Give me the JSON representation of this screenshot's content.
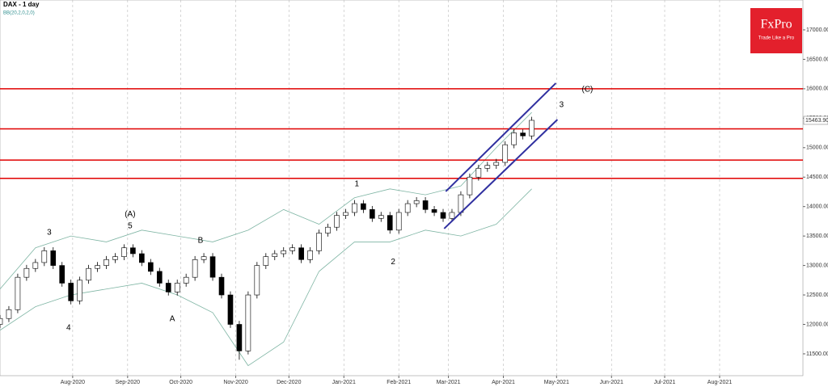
{
  "chart_data": {
    "type": "candlestick",
    "title": "DAX  - 1 day",
    "subtitle": "BB(20,2,0,2,0)",
    "logo": {
      "brand": "FxPro",
      "tagline": "Trade Like a Pro"
    },
    "x": [
      0,
      5,
      10,
      15,
      20,
      25,
      30,
      35,
      40,
      45,
      50,
      55,
      60,
      65,
      70,
      75,
      80,
      85,
      90,
      95,
      100,
      105,
      110,
      115,
      120,
      125,
      130,
      135,
      140,
      145,
      150,
      155,
      160,
      165,
      170,
      175,
      180,
      185,
      190,
      195,
      200,
      205,
      210,
      215,
      220,
      225,
      230,
      235,
      240,
      245,
      250,
      255,
      260,
      265,
      270,
      275,
      280,
      285,
      290,
      295,
      300
    ],
    "open": [
      12000,
      12100,
      12250,
      12800,
      12950,
      13050,
      13250,
      13000,
      12700,
      12400,
      12750,
      12950,
      13000,
      13100,
      13150,
      13300,
      13200,
      13050,
      12900,
      12700,
      12550,
      12700,
      12800,
      13100,
      13150,
      12800,
      12500,
      12000,
      11550,
      12500,
      13000,
      13150,
      13200,
      13250,
      13300,
      13100,
      13250,
      13550,
      13650,
      13850,
      13900,
      14050,
      13950,
      13800,
      13850,
      13600,
      13900,
      14050,
      14100,
      13950,
      13900,
      13800,
      13900,
      14200,
      14500,
      14650,
      14700,
      14750,
      15050,
      15250,
      15200
    ],
    "high": [
      12160,
      12310,
      12860,
      13010,
      13110,
      13310,
      13310,
      13060,
      12760,
      12810,
      13010,
      13060,
      13160,
      13210,
      13360,
      13360,
      13260,
      13110,
      12960,
      12760,
      12760,
      12860,
      13160,
      13210,
      13210,
      12860,
      12560,
      12060,
      12560,
      13060,
      13210,
      13260,
      13310,
      13360,
      13360,
      13310,
      13610,
      13710,
      13910,
      13960,
      14110,
      14110,
      14010,
      13910,
      13910,
      13960,
      14110,
      14160,
      14160,
      14010,
      13960,
      13960,
      14260,
      14560,
      14710,
      14760,
      14810,
      15110,
      15310,
      15310,
      15524
    ],
    "low": [
      11940,
      12040,
      12190,
      12740,
      12890,
      12990,
      12940,
      12640,
      12340,
      12340,
      12690,
      12890,
      12940,
      13040,
      13090,
      13140,
      12990,
      12840,
      12640,
      12490,
      12490,
      12640,
      12740,
      13040,
      12740,
      12440,
      11940,
      11400,
      11490,
      12440,
      12940,
      13090,
      13140,
      13190,
      13040,
      13040,
      13190,
      13490,
      13590,
      13790,
      13840,
      13890,
      13740,
      13740,
      13540,
      13540,
      13840,
      13990,
      13890,
      13840,
      13740,
      13740,
      13840,
      14140,
      14440,
      14590,
      14640,
      14690,
      14990,
      15140,
      15140
    ],
    "close": [
      12100,
      12250,
      12800,
      12950,
      13050,
      13250,
      13000,
      12700,
      12400,
      12750,
      12950,
      13000,
      13100,
      13150,
      13300,
      13200,
      13050,
      12900,
      12700,
      12550,
      12700,
      12800,
      13100,
      13150,
      12800,
      12500,
      12000,
      11550,
      12500,
      13000,
      13150,
      13200,
      13250,
      13300,
      13100,
      13250,
      13550,
      13650,
      13850,
      13900,
      14050,
      13950,
      13800,
      13850,
      13600,
      13900,
      14050,
      14100,
      13950,
      13900,
      13800,
      13900,
      14200,
      14500,
      14650,
      14700,
      14750,
      15050,
      15250,
      15200,
      15463.9
    ],
    "up_color": "#ffffff",
    "down_color": "#000000",
    "bands": {
      "x": [
        0,
        20,
        40,
        60,
        80,
        100,
        120,
        140,
        160,
        180,
        200,
        220,
        240,
        260,
        280,
        300
      ],
      "upper": [
        12600,
        13300,
        13500,
        13400,
        13600,
        13500,
        13400,
        13600,
        13950,
        13700,
        14150,
        14300,
        14200,
        14350,
        15000,
        15600
      ],
      "lower": [
        11900,
        12300,
        12500,
        12600,
        12700,
        12500,
        12200,
        11300,
        11700,
        12900,
        13400,
        13400,
        13600,
        13500,
        13700,
        14300
      ],
      "color": "#7fb5a4"
    },
    "levels": [
      16000,
      15320,
      14790,
      14480
    ],
    "level_color": "#e00000",
    "channel": {
      "color": "#3030a0",
      "lines": [
        {
          "x": [
            251.5,
            313.6
          ],
          "y": [
            14257,
            16095
          ]
        },
        {
          "x": [
            250.6,
            314.5
          ],
          "y": [
            13626,
            15477
          ]
        }
      ]
    },
    "annotations": [
      {
        "text": "3",
        "x": 27.8,
        "y": 13556
      },
      {
        "text": "4",
        "x": 38.7,
        "y": 11940
      },
      {
        "text": "(A)",
        "x": 73.4,
        "y": 13870
      },
      {
        "text": "5",
        "x": 73.4,
        "y": 13670
      },
      {
        "text": "A",
        "x": 97.2,
        "y": 12090
      },
      {
        "text": "B",
        "x": 113.1,
        "y": 13420
      },
      {
        "text": "1",
        "x": 201.3,
        "y": 14380
      },
      {
        "text": "2",
        "x": 221.8,
        "y": 13060
      },
      {
        "text": "3",
        "x": 316.8,
        "y": 15725
      },
      {
        "text": "(C)",
        "x": 331.4,
        "y": 15985
      }
    ],
    "last_price": {
      "value": 15463.9,
      "label": "15463.90"
    },
    "xlim": [
      0,
      453
    ],
    "ylim": [
      11129,
      17507
    ],
    "xticks": [
      {
        "value": 41,
        "label": "Aug-2020"
      },
      {
        "value": 72,
        "label": "Sep-2020"
      },
      {
        "value": 102,
        "label": "Oct-2020"
      },
      {
        "value": 133,
        "label": "Nov-2020"
      },
      {
        "value": 163,
        "label": "Dec-2020"
      },
      {
        "value": 194,
        "label": "Jan-2021"
      },
      {
        "value": 225,
        "label": "Feb-2021"
      },
      {
        "value": 253,
        "label": "Mar-2021"
      },
      {
        "value": 284,
        "label": "Apr-2021"
      },
      {
        "value": 314,
        "label": "May-2021"
      },
      {
        "value": 345,
        "label": "Jun-2021"
      },
      {
        "value": 375,
        "label": "Jul-2021"
      },
      {
        "value": 406,
        "label": "Aug-2021"
      }
    ],
    "yticks": [
      {
        "value": 11500,
        "label": "11500.00"
      },
      {
        "value": 12000,
        "label": "12000.00"
      },
      {
        "value": 12500,
        "label": "12500.00"
      },
      {
        "value": 13000,
        "label": "13000.00"
      },
      {
        "value": 13500,
        "label": "13500.00"
      },
      {
        "value": 14000,
        "label": "14000.00"
      },
      {
        "value": 14500,
        "label": "14500.00"
      },
      {
        "value": 15000,
        "label": "15000.00"
      },
      {
        "value": 15500,
        "label": "15500.00"
      },
      {
        "value": 16000,
        "label": "16000.00"
      },
      {
        "value": 16500,
        "label": "16500.00"
      },
      {
        "value": 17000,
        "label": "17000.00"
      }
    ],
    "grid": true
  }
}
